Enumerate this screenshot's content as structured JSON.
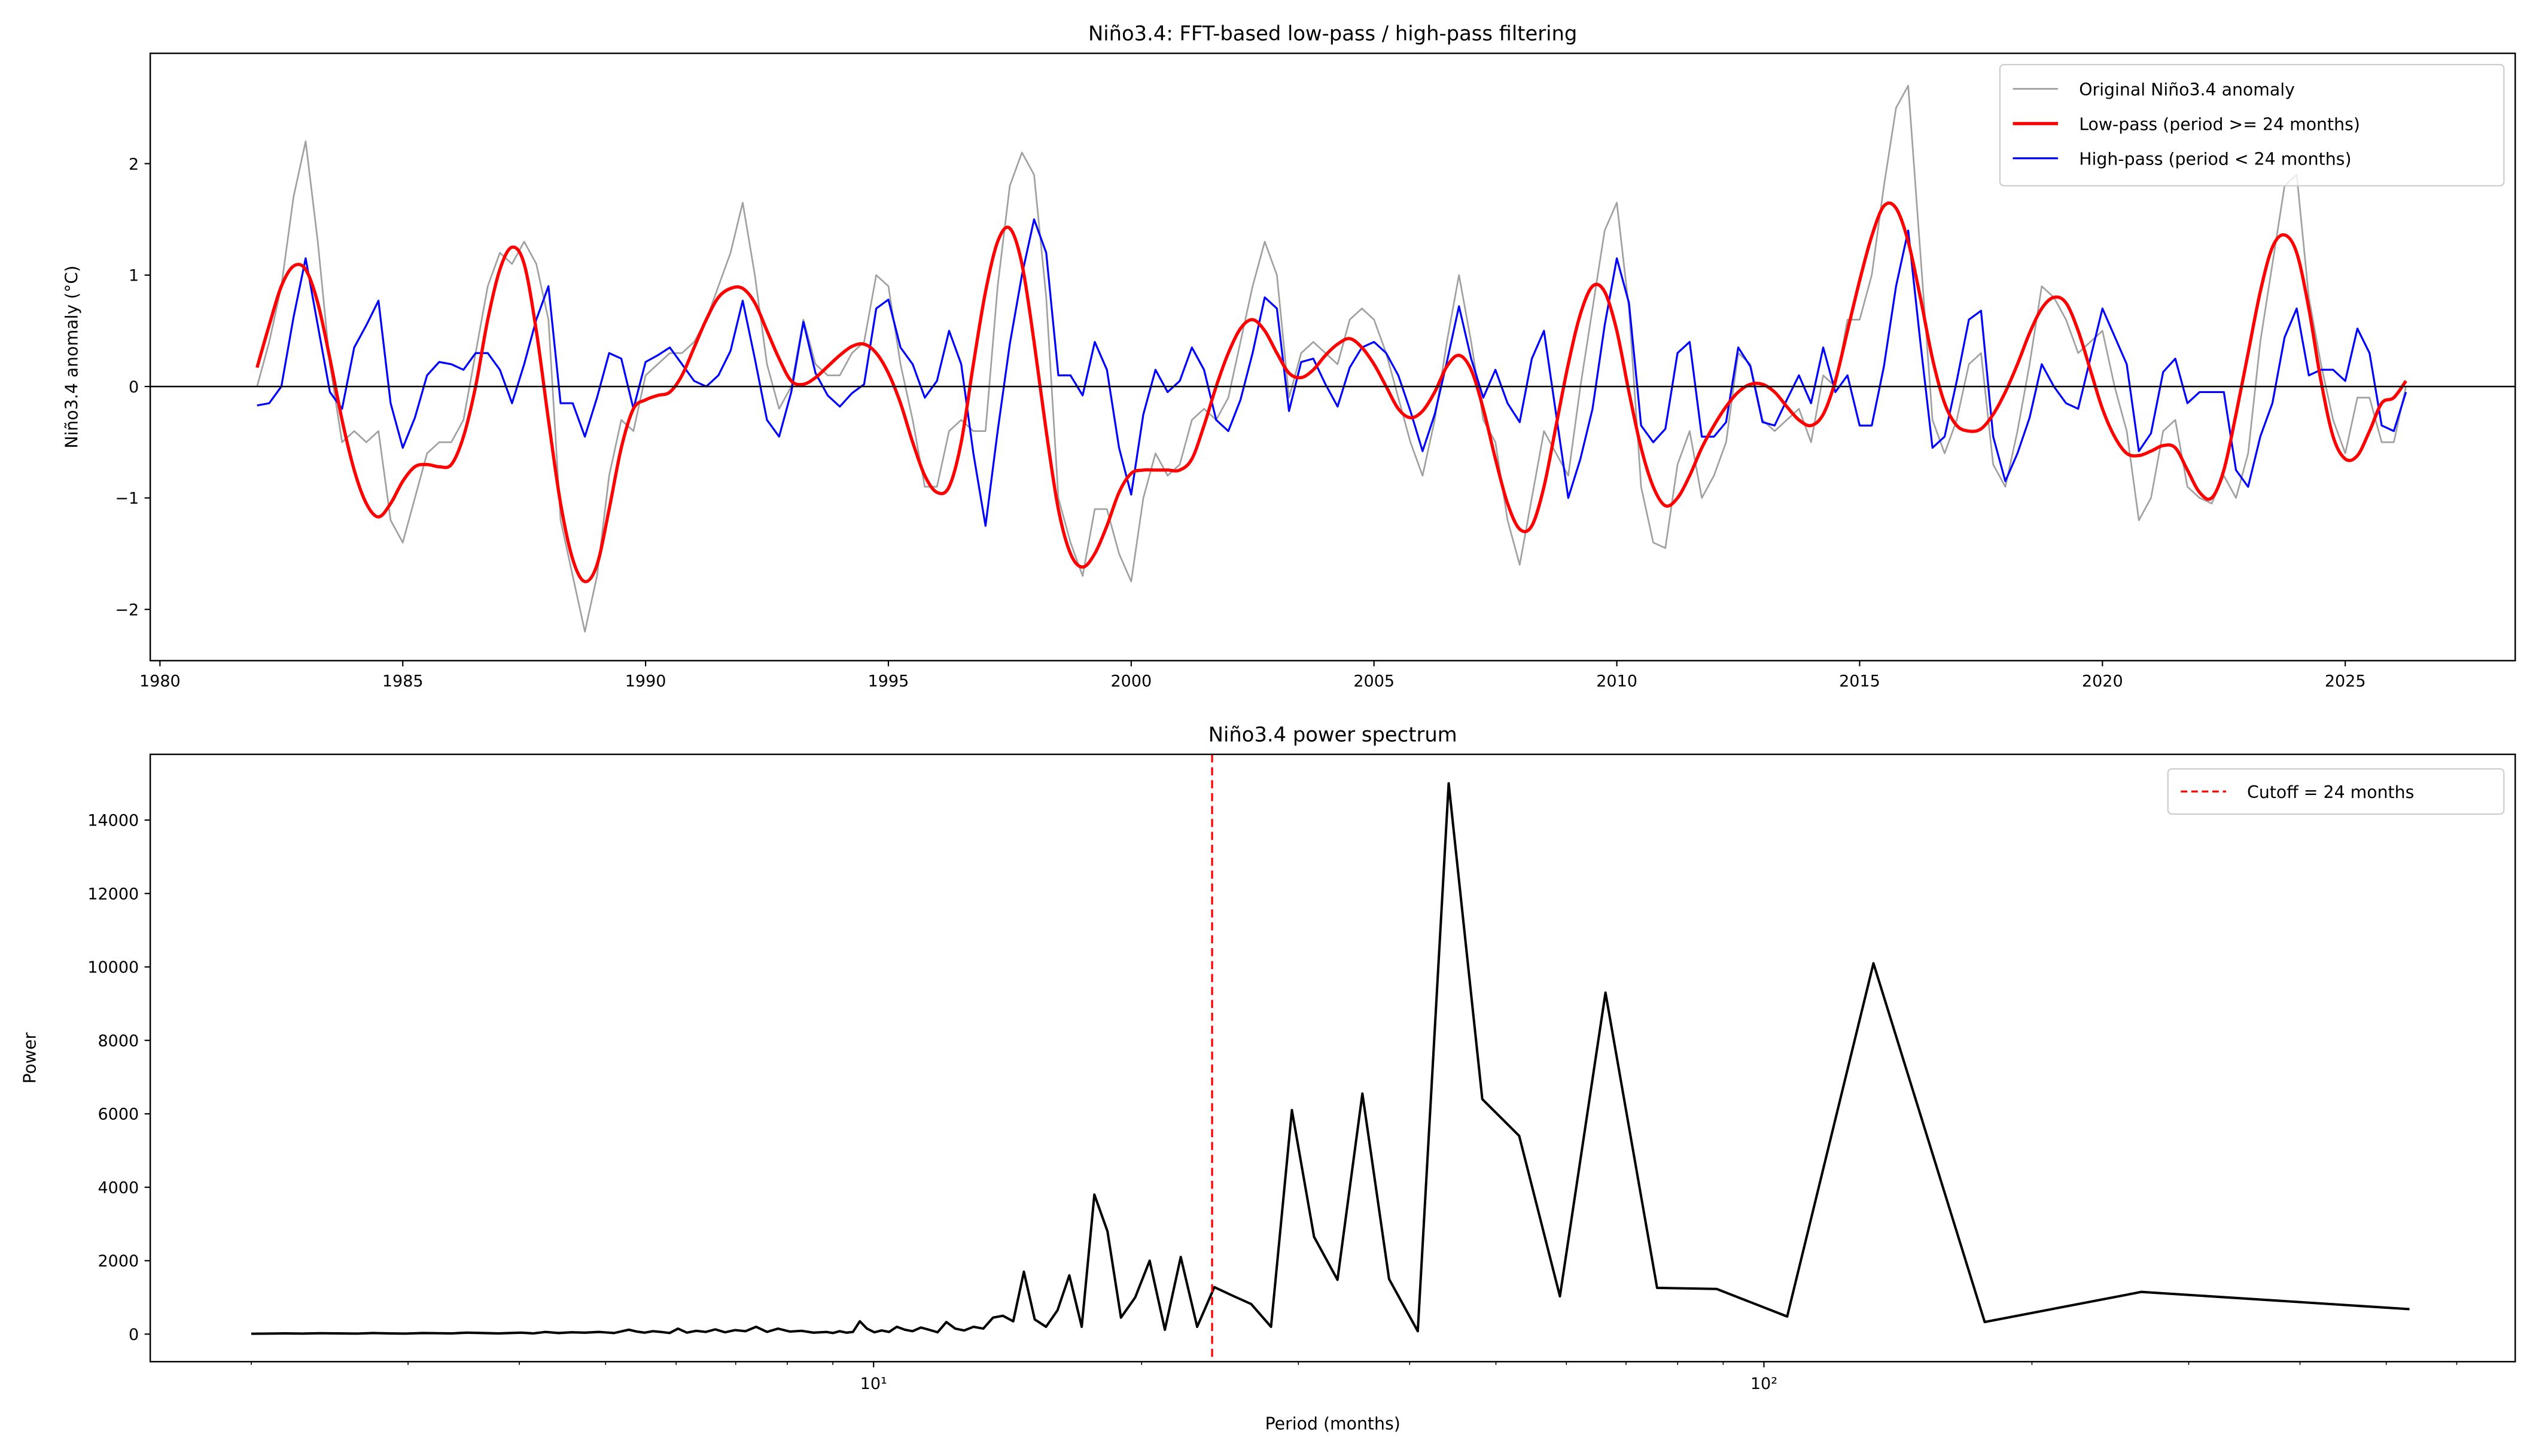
{
  "chart_data": [
    {
      "type": "line",
      "title": "Niño3.4: FFT-based low-pass / high-pass filtering",
      "xlabel": "",
      "ylabel": "Niño3.4 anomaly (°C)",
      "xlim": [
        1979.8,
        2028.5
      ],
      "ylim": [
        -2.46,
        2.99
      ],
      "x_ticks": [
        1980,
        1985,
        1990,
        1995,
        2000,
        2005,
        2010,
        2015,
        2020,
        2025
      ],
      "x_tick_labels": [
        "1980",
        "1985",
        "1990",
        "1995",
        "2000",
        "2005",
        "2010",
        "2015",
        "2020",
        "2025"
      ],
      "y_ticks": [
        -2,
        -1,
        0,
        1,
        2
      ],
      "y_tick_labels": [
        "−2",
        "−1",
        "0",
        "1",
        "2"
      ],
      "grid": false,
      "legend_position": "top-right",
      "reference_line": {
        "y": 0,
        "color": "#000000"
      },
      "dates": [
        "1982-01",
        "1982-04",
        "1982-07",
        "1982-10",
        "1983-01",
        "1983-04",
        "1983-07",
        "1983-10",
        "1984-01",
        "1984-04",
        "1984-07",
        "1984-10",
        "1985-01",
        "1985-04",
        "1985-07",
        "1985-10",
        "1986-01",
        "1986-04",
        "1986-07",
        "1986-10",
        "1987-01",
        "1987-04",
        "1987-07",
        "1987-10",
        "1988-01",
        "1988-04",
        "1988-07",
        "1988-10",
        "1989-01",
        "1989-04",
        "1989-07",
        "1989-10",
        "1990-01",
        "1990-04",
        "1990-07",
        "1990-10",
        "1991-01",
        "1991-04",
        "1991-07",
        "1991-10",
        "1992-01",
        "1992-04",
        "1992-07",
        "1992-10",
        "1993-01",
        "1993-04",
        "1993-07",
        "1993-10",
        "1994-01",
        "1994-04",
        "1994-07",
        "1994-10",
        "1995-01",
        "1995-04",
        "1995-07",
        "1995-10",
        "1996-01",
        "1996-04",
        "1996-07",
        "1996-10",
        "1997-01",
        "1997-04",
        "1997-07",
        "1997-10",
        "1998-01",
        "1998-04",
        "1998-07",
        "1998-10",
        "1999-01",
        "1999-04",
        "1999-07",
        "1999-10",
        "2000-01",
        "2000-04",
        "2000-07",
        "2000-10",
        "2001-01",
        "2001-04",
        "2001-07",
        "2001-10",
        "2002-01",
        "2002-04",
        "2002-07",
        "2002-10",
        "2003-01",
        "2003-04",
        "2003-07",
        "2003-10",
        "2004-01",
        "2004-04",
        "2004-07",
        "2004-10",
        "2005-01",
        "2005-04",
        "2005-07",
        "2005-10",
        "2006-01",
        "2006-04",
        "2006-07",
        "2006-10",
        "2007-01",
        "2007-04",
        "2007-07",
        "2007-10",
        "2008-01",
        "2008-04",
        "2008-07",
        "2008-10",
        "2009-01",
        "2009-04",
        "2009-07",
        "2009-10",
        "2010-01",
        "2010-04",
        "2010-07",
        "2010-10",
        "2011-01",
        "2011-04",
        "2011-07",
        "2011-10",
        "2012-01",
        "2012-04",
        "2012-07",
        "2012-10",
        "2013-01",
        "2013-04",
        "2013-07",
        "2013-10",
        "2014-01",
        "2014-04",
        "2014-07",
        "2014-10",
        "2015-01",
        "2015-04",
        "2015-07",
        "2015-10",
        "2016-01",
        "2016-04",
        "2016-07",
        "2016-10",
        "2017-01",
        "2017-04",
        "2017-07",
        "2017-10",
        "2018-01",
        "2018-04",
        "2018-07",
        "2018-10",
        "2019-01",
        "2019-04",
        "2019-07",
        "2019-10",
        "2020-01",
        "2020-04",
        "2020-07",
        "2020-10",
        "2021-01",
        "2021-04",
        "2021-07",
        "2021-10",
        "2022-01",
        "2022-04",
        "2022-07",
        "2022-10",
        "2023-01",
        "2023-04",
        "2023-07",
        "2023-10",
        "2024-01",
        "2024-04",
        "2024-07",
        "2024-10",
        "2025-01",
        "2025-04",
        "2025-07",
        "2025-10",
        "2026-01",
        "2026-04"
      ],
      "series": [
        {
          "name": "Original Niño3.4 anomaly",
          "color": "#a0a0a0",
          "values": [
            0.0,
            0.4,
            0.9,
            1.7,
            2.2,
            1.3,
            0.2,
            -0.5,
            -0.4,
            -0.5,
            -0.4,
            -1.2,
            -1.4,
            -1.0,
            -0.6,
            -0.5,
            -0.5,
            -0.3,
            0.3,
            0.9,
            1.2,
            1.1,
            1.3,
            1.1,
            0.6,
            -1.2,
            -1.7,
            -2.2,
            -1.7,
            -0.8,
            -0.3,
            -0.4,
            0.1,
            0.2,
            0.3,
            0.3,
            0.4,
            0.6,
            0.9,
            1.2,
            1.65,
            1.0,
            0.2,
            -0.2,
            0.0,
            0.6,
            0.2,
            0.1,
            0.1,
            0.3,
            0.4,
            1.0,
            0.9,
            0.2,
            -0.3,
            -0.9,
            -0.9,
            -0.4,
            -0.3,
            -0.4,
            -0.4,
            0.9,
            1.8,
            2.1,
            1.9,
            0.8,
            -1.0,
            -1.4,
            -1.7,
            -1.1,
            -1.1,
            -1.5,
            -1.75,
            -1.0,
            -0.6,
            -0.8,
            -0.7,
            -0.3,
            -0.2,
            -0.3,
            -0.1,
            0.4,
            0.9,
            1.3,
            1.0,
            -0.1,
            0.3,
            0.4,
            0.3,
            0.2,
            0.6,
            0.7,
            0.6,
            0.3,
            -0.1,
            -0.5,
            -0.8,
            -0.3,
            0.4,
            1.0,
            0.4,
            -0.3,
            -0.5,
            -1.2,
            -1.6,
            -1.0,
            -0.4,
            -0.6,
            -0.8,
            0.0,
            0.7,
            1.4,
            1.65,
            0.7,
            -0.9,
            -1.4,
            -1.45,
            -0.7,
            -0.4,
            -1.0,
            -0.8,
            -0.5,
            0.3,
            0.2,
            -0.3,
            -0.4,
            -0.3,
            -0.2,
            -0.5,
            0.1,
            0.0,
            0.6,
            0.6,
            1.0,
            1.8,
            2.5,
            2.7,
            1.2,
            -0.3,
            -0.6,
            -0.3,
            0.2,
            0.3,
            -0.7,
            -0.9,
            -0.4,
            0.2,
            0.9,
            0.8,
            0.6,
            0.3,
            0.4,
            0.5,
            0.0,
            -0.4,
            -1.2,
            -1.0,
            -0.4,
            -0.3,
            -0.9,
            -1.0,
            -1.05,
            -0.8,
            -1.0,
            -0.6,
            0.4,
            1.1,
            1.8,
            1.9,
            0.8,
            0.2,
            -0.3,
            -0.6,
            -0.1,
            -0.1,
            -0.5,
            -0.5,
            0.0
          ]
        },
        {
          "name": "Low-pass (period >= 24 months)",
          "color": "#ff0000",
          "values": [
            0.17,
            0.55,
            0.9,
            1.08,
            1.05,
            0.75,
            0.25,
            -0.3,
            -0.75,
            -1.05,
            -1.17,
            -1.05,
            -0.85,
            -0.72,
            -0.7,
            -0.72,
            -0.7,
            -0.45,
            0.0,
            0.6,
            1.05,
            1.25,
            1.1,
            0.5,
            -0.3,
            -1.05,
            -1.55,
            -1.75,
            -1.6,
            -1.1,
            -0.55,
            -0.2,
            -0.12,
            -0.08,
            -0.05,
            0.1,
            0.35,
            0.6,
            0.8,
            0.88,
            0.88,
            0.75,
            0.5,
            0.25,
            0.05,
            0.02,
            0.08,
            0.18,
            0.28,
            0.36,
            0.38,
            0.3,
            0.12,
            -0.15,
            -0.5,
            -0.8,
            -0.95,
            -0.9,
            -0.5,
            0.2,
            0.85,
            1.3,
            1.42,
            1.1,
            0.4,
            -0.4,
            -1.1,
            -1.5,
            -1.62,
            -1.5,
            -1.25,
            -0.95,
            -0.78,
            -0.75,
            -0.75,
            -0.75,
            -0.75,
            -0.65,
            -0.35,
            0.0,
            0.3,
            0.52,
            0.6,
            0.5,
            0.3,
            0.12,
            0.08,
            0.15,
            0.28,
            0.38,
            0.43,
            0.35,
            0.2,
            0.0,
            -0.2,
            -0.28,
            -0.22,
            -0.05,
            0.18,
            0.28,
            0.15,
            -0.2,
            -0.65,
            -1.05,
            -1.28,
            -1.25,
            -0.9,
            -0.35,
            0.2,
            0.65,
            0.9,
            0.85,
            0.5,
            -0.05,
            -0.55,
            -0.9,
            -1.07,
            -1.0,
            -0.8,
            -0.55,
            -0.35,
            -0.18,
            -0.05,
            0.02,
            0.02,
            -0.05,
            -0.18,
            -0.3,
            -0.35,
            -0.25,
            0.05,
            0.5,
            0.95,
            1.35,
            1.62,
            1.6,
            1.3,
            0.8,
            0.25,
            -0.15,
            -0.35,
            -0.4,
            -0.38,
            -0.25,
            -0.05,
            0.2,
            0.48,
            0.7,
            0.8,
            0.75,
            0.5,
            0.15,
            -0.2,
            -0.45,
            -0.6,
            -0.62,
            -0.58,
            -0.53,
            -0.55,
            -0.75,
            -0.95,
            -1.0,
            -0.75,
            -0.25,
            0.3,
            0.85,
            1.25,
            1.36,
            1.2,
            0.7,
            0.05,
            -0.45,
            -0.65,
            -0.62,
            -0.4,
            -0.15,
            -0.1,
            0.05
          ]
        },
        {
          "name": "High-pass (period < 24 months)",
          "color": "#0000ff",
          "values": [
            -0.17,
            -0.15,
            0.0,
            0.62,
            1.15,
            0.55,
            -0.05,
            -0.2,
            0.35,
            0.55,
            0.77,
            -0.15,
            -0.55,
            -0.28,
            0.1,
            0.22,
            0.2,
            0.15,
            0.3,
            0.3,
            0.15,
            -0.15,
            0.2,
            0.6,
            0.9,
            -0.15,
            -0.15,
            -0.45,
            -0.1,
            0.3,
            0.25,
            -0.2,
            0.22,
            0.28,
            0.35,
            0.2,
            0.05,
            0.0,
            0.1,
            0.32,
            0.77,
            0.25,
            -0.3,
            -0.45,
            -0.05,
            0.58,
            0.12,
            -0.08,
            -0.18,
            -0.06,
            0.02,
            0.7,
            0.78,
            0.35,
            0.2,
            -0.1,
            0.05,
            0.5,
            0.2,
            -0.6,
            -1.25,
            -0.4,
            0.38,
            1.0,
            1.5,
            1.2,
            0.1,
            0.1,
            -0.08,
            0.4,
            0.15,
            -0.55,
            -0.97,
            -0.25,
            0.15,
            -0.05,
            0.05,
            0.35,
            0.15,
            -0.3,
            -0.4,
            -0.12,
            0.3,
            0.8,
            0.7,
            -0.22,
            0.22,
            0.25,
            0.02,
            -0.18,
            0.17,
            0.35,
            0.4,
            0.3,
            0.1,
            -0.22,
            -0.58,
            -0.25,
            0.22,
            0.72,
            0.25,
            -0.1,
            0.15,
            -0.15,
            -0.32,
            0.25,
            0.5,
            -0.25,
            -1.0,
            -0.65,
            -0.2,
            0.55,
            1.15,
            0.75,
            -0.35,
            -0.5,
            -0.38,
            0.3,
            0.4,
            -0.45,
            -0.45,
            -0.32,
            0.35,
            0.18,
            -0.32,
            -0.35,
            -0.12,
            0.1,
            -0.15,
            0.35,
            -0.05,
            0.1,
            -0.35,
            -0.35,
            0.18,
            0.9,
            1.4,
            0.4,
            -0.55,
            -0.45,
            0.05,
            0.6,
            0.68,
            -0.45,
            -0.85,
            -0.6,
            -0.28,
            0.2,
            0.0,
            -0.15,
            -0.2,
            0.25,
            0.7,
            0.45,
            0.2,
            -0.58,
            -0.42,
            0.13,
            0.25,
            -0.15,
            -0.05,
            -0.05,
            -0.05,
            -0.75,
            -0.9,
            -0.45,
            -0.15,
            0.44,
            0.7,
            0.1,
            0.15,
            0.15,
            0.05,
            0.52,
            0.3,
            -0.35,
            -0.4,
            -0.05
          ]
        }
      ]
    },
    {
      "type": "line",
      "title": "Niño3.4 power spectrum",
      "xlabel": "Period (months)",
      "ylabel": "Power",
      "x_scale": "log",
      "xlim": [
        1.54,
        698
      ],
      "ylim": [
        -750,
        15790
      ],
      "x_ticks": [
        10,
        100
      ],
      "x_tick_labels": [
        "10¹",
        "10²"
      ],
      "y_ticks": [
        0,
        2000,
        4000,
        6000,
        8000,
        10000,
        12000,
        14000
      ],
      "y_tick_labels": [
        "0",
        "2000",
        "4000",
        "6000",
        "8000",
        "10000",
        "12000",
        "14000"
      ],
      "grid": false,
      "legend_position": "top-right",
      "cutoff": {
        "label": "Cutoff = 24 months",
        "period": 24,
        "color": "#ff0000",
        "style": "dashed"
      },
      "series": [
        {
          "color": "#000000",
          "period": [
            531,
            265.5,
            177,
            132.75,
            106.2,
            88.5,
            75.86,
            66.38,
            59,
            53.1,
            48.27,
            44.25,
            40.85,
            37.93,
            35.4,
            33.19,
            31.24,
            29.5,
            27.95,
            26.55,
            25.29,
            24.14,
            23.09,
            22.13,
            21.24,
            20.42,
            19.67,
            18.96,
            18.31,
            17.7,
            17.13,
            16.59,
            16.09,
            15.62,
            15.17,
            14.75,
            14.35,
            13.97,
            13.62,
            13.28,
            12.95,
            12.64,
            12.35,
            12.07,
            11.8,
            11.54,
            11.3,
            11.06,
            10.84,
            10.62,
            10.41,
            10.21,
            10.02,
            9.83,
            9.65,
            9.48,
            9.32,
            9.16,
            9.0,
            8.85,
            8.56,
            8.3,
            8.05,
            7.81,
            7.59,
            7.38,
            7.18,
            6.99,
            6.81,
            6.64,
            6.48,
            6.32,
            6.17,
            6.03,
            5.9,
            5.77,
            5.65,
            5.53,
            5.42,
            5.31,
            5.11,
            4.92,
            4.74,
            4.58,
            4.43,
            4.28,
            4.15,
            4.02,
            3.9,
            3.79,
            3.64,
            3.49,
            3.36,
            3.24,
            3.12,
            2.98,
            2.85,
            2.74,
            2.63,
            2.5,
            2.39,
            2.29,
            2.18,
            2.09,
            2.0
          ],
          "power": [
            680,
            1150,
            330,
            10100,
            480,
            1230,
            1260,
            9300,
            1030,
            5400,
            6400,
            15000,
            80,
            1500,
            6550,
            1480,
            2650,
            6100,
            200,
            820,
            1050,
            1280,
            200,
            2100,
            120,
            2000,
            1000,
            450,
            2800,
            3800,
            200,
            1600,
            650,
            200,
            400,
            1700,
            350,
            500,
            450,
            150,
            200,
            100,
            150,
            330,
            50,
            120,
            180,
            80,
            120,
            200,
            60,
            100,
            50,
            150,
            350,
            60,
            40,
            80,
            30,
            60,
            40,
            90,
            70,
            150,
            60,
            200,
            80,
            110,
            50,
            130,
            60,
            90,
            40,
            150,
            30,
            60,
            80,
            40,
            70,
            120,
            30,
            60,
            40,
            50,
            30,
            60,
            20,
            40,
            30,
            20,
            30,
            40,
            20,
            25,
            30,
            15,
            20,
            30,
            15,
            20,
            25,
            15,
            20,
            15,
            10
          ]
        }
      ]
    }
  ]
}
